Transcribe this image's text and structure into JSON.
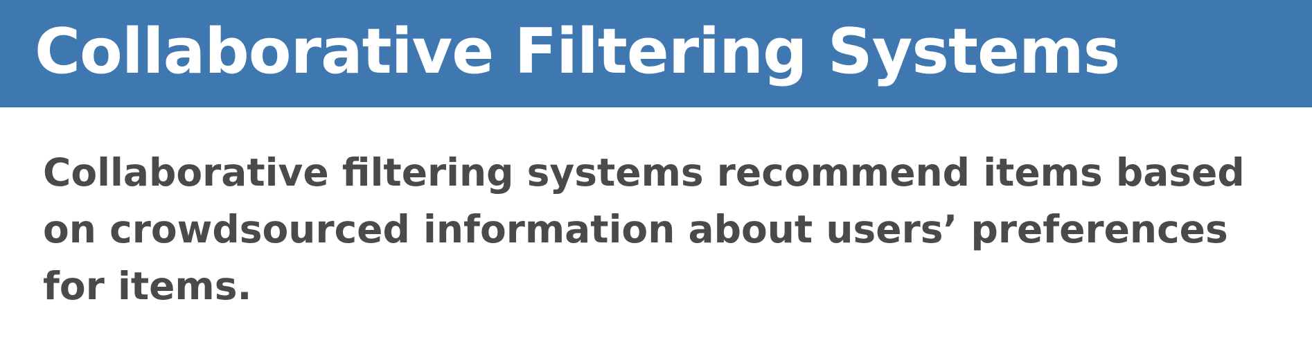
{
  "slide": {
    "title": "Collaborative Filtering Systems",
    "body_lines": [
      "Collaborative filtering systems recommend items based",
      "on crowdsourced information about users’ preferences",
      "for items."
    ]
  },
  "colors": {
    "title_bar": "#3f78b1",
    "title_text": "#ffffff",
    "body_text": "#4a4a4a",
    "background": "#ffffff"
  }
}
